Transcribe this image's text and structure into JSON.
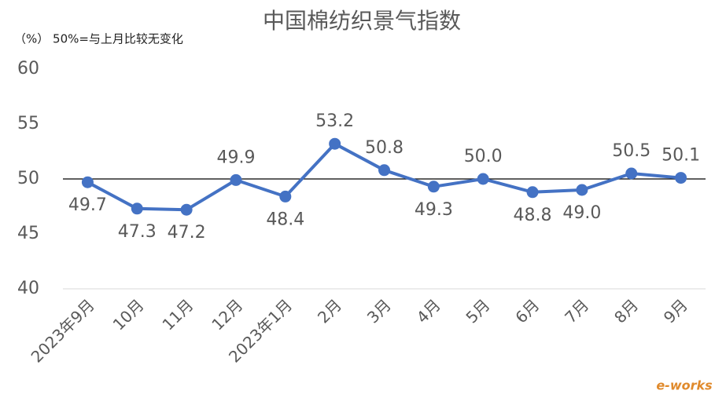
{
  "chart_data": {
    "type": "line",
    "title": "中国棉纺织景气指数",
    "subtitle": "（%） 50%=与上月比较无变化",
    "categories": [
      "2023年9月",
      "10月",
      "11月",
      "12月",
      "2023年1月",
      "2月",
      "3月",
      "4月",
      "5月",
      "6月",
      "7月",
      "8月",
      "9月"
    ],
    "series": [
      {
        "name": "中国棉纺织景气指数",
        "color": "#4472c4",
        "values": [
          49.7,
          47.3,
          47.2,
          49.9,
          48.4,
          53.2,
          50.8,
          49.3,
          50,
          48.8,
          49,
          50.5,
          50.1
        ],
        "value_labels": [
          "49.7",
          "47.3",
          "47.2",
          "49.9",
          "48.4",
          "53.2",
          "50.8",
          "49.3",
          "50.0",
          "48.8",
          "49.0",
          "50.5",
          "50.1"
        ],
        "label_positions": [
          "below",
          "below",
          "below",
          "above",
          "below",
          "above",
          "above",
          "below",
          "above",
          "below",
          "below",
          "above",
          "above"
        ]
      }
    ],
    "ylim": [
      40,
      60
    ],
    "yticks": [
      40,
      45,
      50,
      55,
      60
    ],
    "reference_line": 50,
    "grid": false,
    "watermark": "e-works"
  }
}
